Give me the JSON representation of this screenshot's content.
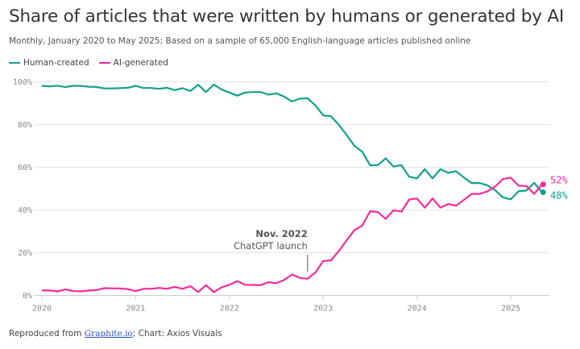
{
  "chart_data": {
    "type": "line",
    "title": "Share of articles that were written by humans or generated by AI",
    "subtitle": "Monthly, January 2020 to May 2025; Based on a sample of 65,000 English-language articles published online",
    "x_start": "2020-01",
    "x_end": "2025-05",
    "x_frequency": "monthly",
    "x_ticks": [
      "2020",
      "2021",
      "2022",
      "2023",
      "2024",
      "2025"
    ],
    "y_ticks": [
      "0%",
      "20%",
      "40%",
      "60%",
      "80%",
      "100%"
    ],
    "ylim": [
      0,
      100
    ],
    "grid": "horizontal",
    "legend_placement": "top-left",
    "series": [
      {
        "name": "Human-created",
        "color": "#12a08f",
        "end_label": "48%",
        "values": [
          98.1,
          97.9,
          98.2,
          97.5,
          98.1,
          98.1,
          97.7,
          97.6,
          96.9,
          96.9,
          97,
          97.2,
          98.1,
          97.1,
          97.1,
          96.7,
          97.2,
          96.1,
          97,
          95.7,
          98.6,
          95.2,
          98.7,
          96.4,
          95,
          93.5,
          95,
          95.2,
          95.2,
          94,
          94.6,
          93.1,
          90.8,
          92.1,
          92.3,
          89,
          84.3,
          83.9,
          79.9,
          75.1,
          70,
          67.3,
          60.9,
          61,
          64.2,
          60.3,
          61,
          55.6,
          54.8,
          59.1,
          54.8,
          59.1,
          57.4,
          58.1,
          55.2,
          52.6,
          52.6,
          51.6,
          49.3,
          45.9,
          45,
          48.7,
          49.1,
          52.7,
          48.3
        ]
      },
      {
        "name": "AI-generated",
        "color": "#f72a9b",
        "end_label": "52%",
        "values": [
          2.3,
          2.3,
          1.9,
          2.8,
          2,
          1.9,
          2.3,
          2.5,
          3.4,
          3.3,
          3.3,
          2.9,
          2,
          3.1,
          3.1,
          3.5,
          3.1,
          4,
          3.1,
          4.3,
          1.6,
          4.8,
          1.5,
          3.8,
          5,
          6.7,
          5,
          4.9,
          4.8,
          6.2,
          5.7,
          7.2,
          9.8,
          8.2,
          7.8,
          10.7,
          16.1,
          16.4,
          20.8,
          25.8,
          30.6,
          32.7,
          39.4,
          39,
          35.8,
          39.9,
          39.2,
          44.9,
          45.4,
          41.1,
          45.4,
          41.1,
          42.8,
          42,
          44.7,
          47.5,
          47.5,
          48.7,
          50.9,
          54.5,
          55.1,
          51.4,
          51.2,
          47.5,
          52
        ]
      }
    ],
    "annotation": {
      "date": "2022-11",
      "title": "Nov. 2022",
      "text": "ChatGPT launch"
    }
  },
  "footer": {
    "prefix": "Reproduced from ",
    "link": "Graphite.io",
    "suffix": "; Chart: Axios Visuals"
  }
}
